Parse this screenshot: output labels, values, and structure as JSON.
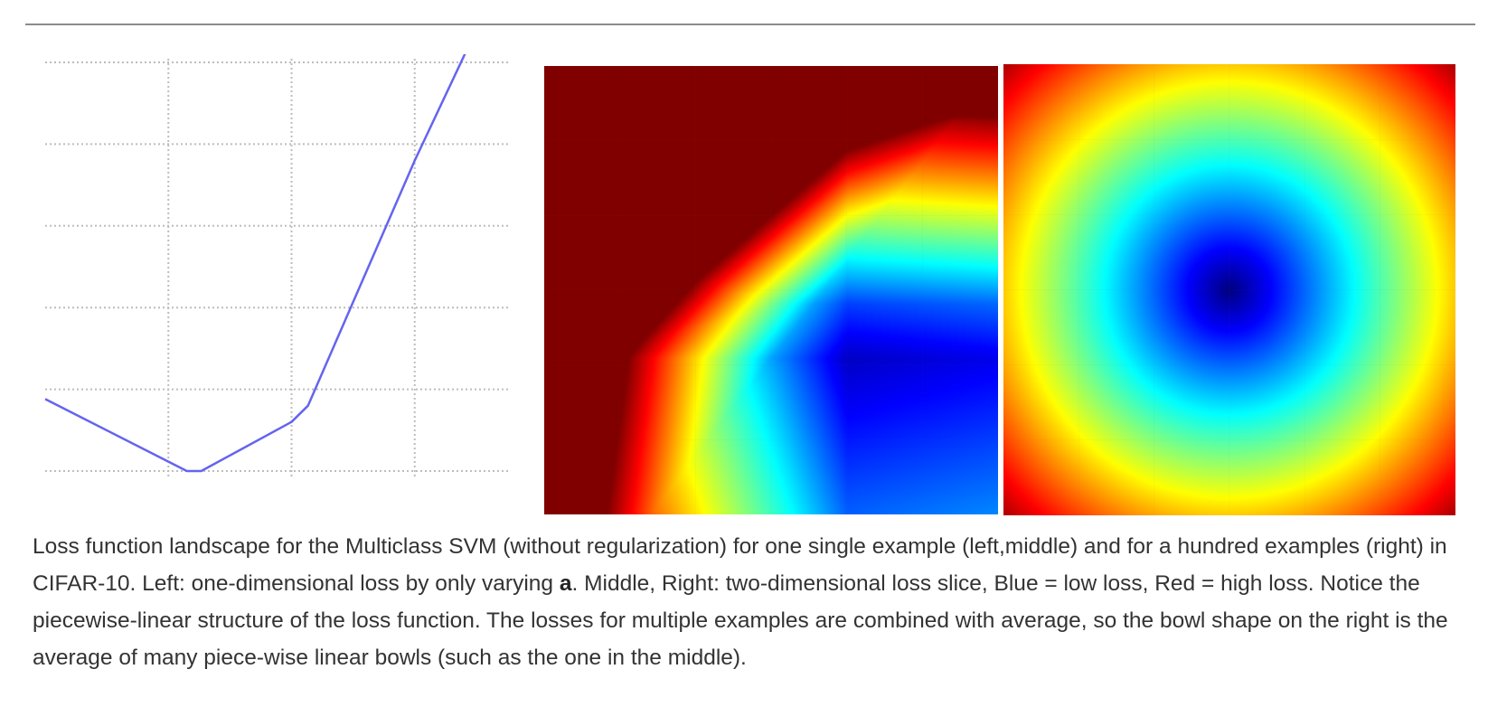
{
  "chart_data": [
    {
      "type": "line",
      "panel": "left",
      "grid": true,
      "x": [
        -5.0,
        -1.55,
        -1.2,
        1.0,
        1.4,
        4.0,
        7.0
      ],
      "y": [
        0.88,
        0.0,
        0.0,
        0.6,
        0.8,
        3.8,
        7.0
      ],
      "xlim": [
        -5.0,
        7.0
      ],
      "ylim": [
        -0.1,
        5.1
      ],
      "line_color": "#6464f0"
    },
    {
      "type": "heatmap",
      "panel": "middle",
      "colormap": "jet",
      "grid": true,
      "minimum": [
        0.5,
        0.5
      ],
      "shape": "piecewise-linear"
    },
    {
      "type": "heatmap",
      "panel": "right",
      "colormap": "jet",
      "grid": true,
      "minimum": [
        0.5,
        0.5
      ],
      "shape": "bowl"
    }
  ],
  "caption": {
    "part1": "Loss function landscape for the Multiclass SVM (without regularization) for one single example (left,middle) and for a hundred examples (right) in CIFAR-10. Left: one-dimensional loss by only varying ",
    "bold": "a",
    "part2": ". Middle, Right: two-dimensional loss slice, Blue = low loss, Red = high loss. Notice the piecewise-linear structure of the loss function. The losses for multiple examples are combined with average, so the bowl shape on the right is the average of many piece-wise linear bowls (such as the one in the middle)."
  }
}
